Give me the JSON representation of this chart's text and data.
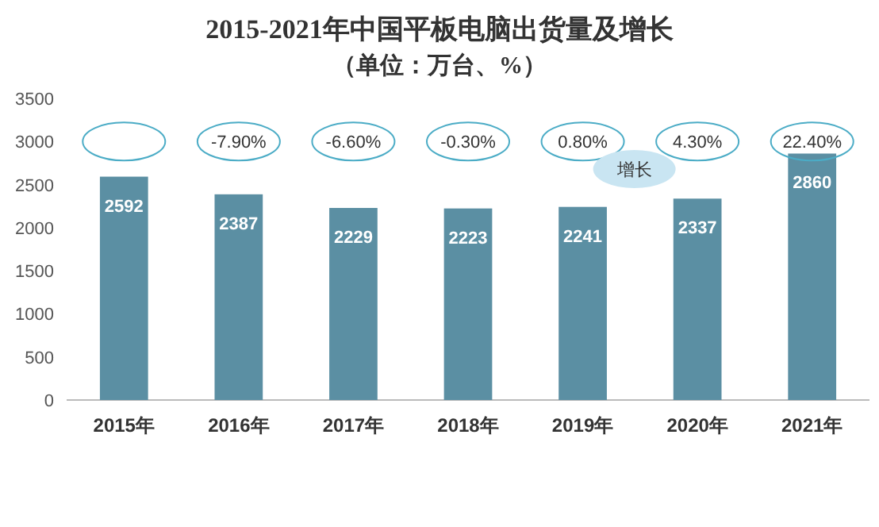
{
  "chart_data": {
    "type": "bar",
    "title": "2015-2021年中国平板电脑出货量及增长",
    "subtitle": "（单位：万台、%）",
    "categories": [
      "2015年",
      "2016年",
      "2017年",
      "2018年",
      "2019年",
      "2020年",
      "2021年"
    ],
    "series": [
      {
        "color": "#5b8fa3",
        "values": [
          2592,
          2387,
          2229,
          2223,
          2241,
          2337,
          2860
        ]
      }
    ],
    "data_labels": true,
    "ylim": [
      0,
      3500
    ],
    "yticks": [
      0,
      500,
      1000,
      1500,
      2000,
      2500,
      3000,
      3500
    ],
    "grid": false,
    "annotations": [
      "-7.90%",
      "-6.60%",
      "-0.30%",
      "0.80%",
      "4.30%",
      "22.40%",
      "增长"
    ]
  }
}
